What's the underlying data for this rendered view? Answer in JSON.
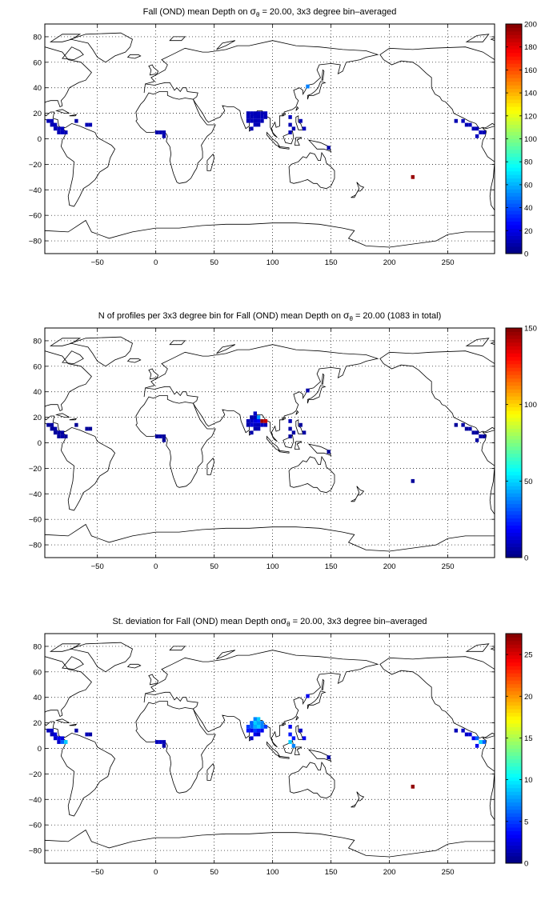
{
  "colors": {
    "jet": [
      "#00008f",
      "#0000ff",
      "#0080ff",
      "#00ffff",
      "#80ff80",
      "#ffff00",
      "#ff8000",
      "#ff0000",
      "#800000"
    ],
    "land_outline": "#000000",
    "grid": "#000000"
  },
  "panels": [
    {
      "title_pre": "Fall (OND) mean Depth on ",
      "title_sigma": "σ",
      "title_sub": "θ",
      "title_post": " = 20.00, 3x3 degree bin–averaged",
      "chart_data": {
        "type": "heatmap",
        "map_projection": "equirectangular",
        "xlim": [
          -95,
          290
        ],
        "ylim": [
          -90,
          90
        ],
        "xticks": [
          -50,
          0,
          50,
          100,
          150,
          200,
          250
        ],
        "xtick_labels": [
          "−50",
          "0",
          "50",
          "100",
          "150",
          "200",
          "250"
        ],
        "yticks": [
          80,
          60,
          40,
          20,
          0,
          -20,
          -40,
          -60,
          -80
        ],
        "ytick_labels": [
          "80",
          "60",
          "40",
          "20",
          "0",
          "−20",
          "−40",
          "−60",
          "−80"
        ],
        "grid": true,
        "colorbar": {
          "min": 0,
          "max": 200,
          "ticks": [
            0,
            20,
            40,
            60,
            80,
            100,
            120,
            140,
            160,
            180,
            200
          ],
          "tick_labels": [
            "0",
            "20",
            "40",
            "60",
            "80",
            "100",
            "120",
            "140",
            "160",
            "180",
            "200"
          ]
        },
        "bins": [
          [
            -92,
            14,
            10
          ],
          [
            -89,
            14,
            12
          ],
          [
            -89,
            11,
            10
          ],
          [
            -86,
            11,
            12
          ],
          [
            -86,
            8,
            10
          ],
          [
            -83,
            8,
            12
          ],
          [
            -80,
            8,
            12
          ],
          [
            -83,
            5,
            10
          ],
          [
            -80,
            5,
            12
          ],
          [
            -77,
            5,
            10
          ],
          [
            -68,
            14,
            8
          ],
          [
            -59,
            11,
            10
          ],
          [
            -56,
            11,
            10
          ],
          [
            1,
            5,
            8
          ],
          [
            4,
            5,
            10
          ],
          [
            7,
            5,
            10
          ],
          [
            7,
            2,
            8
          ],
          [
            79,
            20,
            10
          ],
          [
            82,
            20,
            12
          ],
          [
            85,
            20,
            10
          ],
          [
            88,
            20,
            12
          ],
          [
            91,
            20,
            10
          ],
          [
            94,
            20,
            12
          ],
          [
            79,
            17,
            12
          ],
          [
            82,
            17,
            10
          ],
          [
            85,
            17,
            12
          ],
          [
            88,
            17,
            10
          ],
          [
            91,
            17,
            12
          ],
          [
            94,
            17,
            10
          ],
          [
            79,
            14,
            10
          ],
          [
            82,
            14,
            12
          ],
          [
            85,
            14,
            10
          ],
          [
            88,
            14,
            12
          ],
          [
            91,
            14,
            10
          ],
          [
            85,
            11,
            12
          ],
          [
            88,
            11,
            10
          ],
          [
            82,
            8,
            10
          ],
          [
            115,
            17,
            12
          ],
          [
            115,
            11,
            10
          ],
          [
            118,
            8,
            10
          ],
          [
            115,
            5,
            10
          ],
          [
            130,
            41,
            50
          ],
          [
            124,
            14,
            10
          ],
          [
            127,
            8,
            12
          ],
          [
            148,
            -7,
            8
          ],
          [
            257,
            14,
            10
          ],
          [
            263,
            14,
            12
          ],
          [
            266,
            11,
            10
          ],
          [
            269,
            11,
            12
          ],
          [
            272,
            8,
            10
          ],
          [
            275,
            8,
            10
          ],
          [
            278,
            5,
            12
          ],
          [
            281,
            5,
            10
          ],
          [
            275,
            2,
            12
          ],
          [
            220,
            -30,
            195
          ]
        ]
      }
    },
    {
      "title": "N of profiles per 3x3 degree bin for Fall (OND) mean Depth on ",
      "title_sigma": "σ",
      "title_sub": "θ",
      "title_post": " = 20.00 (1083 in total)",
      "chart_data": {
        "type": "heatmap",
        "map_projection": "equirectangular",
        "xlim": [
          -95,
          290
        ],
        "ylim": [
          -90,
          90
        ],
        "xticks": [
          -50,
          0,
          50,
          100,
          150,
          200,
          250
        ],
        "xtick_labels": [
          "−50",
          "0",
          "50",
          "100",
          "150",
          "200",
          "250"
        ],
        "yticks": [
          80,
          60,
          40,
          20,
          0,
          -20,
          -40,
          -60,
          -80
        ],
        "ytick_labels": [
          "80",
          "60",
          "40",
          "20",
          "0",
          "−20",
          "−40",
          "−60",
          "−80"
        ],
        "grid": true,
        "colorbar": {
          "min": 0,
          "max": 150,
          "ticks": [
            0,
            50,
            100,
            150
          ],
          "tick_labels": [
            "0",
            "50",
            "100",
            "150"
          ]
        },
        "bins": [
          [
            -92,
            14,
            4
          ],
          [
            -89,
            14,
            5
          ],
          [
            -89,
            11,
            4
          ],
          [
            -86,
            11,
            6
          ],
          [
            -86,
            8,
            4
          ],
          [
            -83,
            8,
            6
          ],
          [
            -80,
            8,
            5
          ],
          [
            -83,
            5,
            4
          ],
          [
            -80,
            5,
            6
          ],
          [
            -77,
            5,
            4
          ],
          [
            -68,
            14,
            3
          ],
          [
            -59,
            11,
            4
          ],
          [
            -56,
            11,
            3
          ],
          [
            1,
            5,
            4
          ],
          [
            4,
            5,
            6
          ],
          [
            7,
            5,
            4
          ],
          [
            7,
            2,
            3
          ],
          [
            82,
            20,
            6
          ],
          [
            85,
            20,
            8
          ],
          [
            88,
            20,
            40
          ],
          [
            85,
            23,
            10
          ],
          [
            79,
            17,
            8
          ],
          [
            82,
            17,
            10
          ],
          [
            85,
            17,
            14
          ],
          [
            88,
            17,
            18
          ],
          [
            91,
            17,
            146
          ],
          [
            94,
            17,
            140
          ],
          [
            79,
            14,
            6
          ],
          [
            82,
            14,
            12
          ],
          [
            85,
            14,
            10
          ],
          [
            88,
            14,
            8
          ],
          [
            91,
            14,
            10
          ],
          [
            94,
            14,
            8
          ],
          [
            85,
            11,
            6
          ],
          [
            88,
            11,
            8
          ],
          [
            82,
            8,
            6
          ],
          [
            115,
            17,
            8
          ],
          [
            115,
            11,
            6
          ],
          [
            118,
            8,
            5
          ],
          [
            115,
            5,
            4
          ],
          [
            130,
            41,
            6
          ],
          [
            124,
            14,
            4
          ],
          [
            127,
            8,
            5
          ],
          [
            148,
            -7,
            3
          ],
          [
            257,
            14,
            4
          ],
          [
            263,
            14,
            5
          ],
          [
            266,
            11,
            4
          ],
          [
            269,
            11,
            6
          ],
          [
            272,
            8,
            5
          ],
          [
            275,
            8,
            4
          ],
          [
            278,
            5,
            6
          ],
          [
            281,
            5,
            4
          ],
          [
            275,
            2,
            5
          ],
          [
            220,
            -30,
            4
          ]
        ]
      }
    },
    {
      "title": "St. deviation for Fall (OND) mean Depth on",
      "title_sigma": "σ",
      "title_sub": "θ",
      "title_post": " = 20.00, 3x3 degree bin–averaged",
      "chart_data": {
        "type": "heatmap",
        "map_projection": "equirectangular",
        "xlim": [
          -95,
          290
        ],
        "ylim": [
          -90,
          90
        ],
        "xticks": [
          -50,
          0,
          50,
          100,
          150,
          200,
          250
        ],
        "xtick_labels": [
          "−50",
          "0",
          "50",
          "100",
          "150",
          "200",
          "250"
        ],
        "yticks": [
          80,
          60,
          40,
          20,
          0,
          -20,
          -40,
          -60,
          -80
        ],
        "ytick_labels": [
          "80",
          "60",
          "40",
          "20",
          "0",
          "−20",
          "−40",
          "−60",
          "−80"
        ],
        "grid": true,
        "colorbar": {
          "min": 0,
          "max": 27.5,
          "ticks": [
            0,
            5,
            10,
            15,
            20,
            25
          ],
          "tick_labels": [
            "0",
            "5",
            "10",
            "15",
            "20",
            "25"
          ]
        },
        "bins": [
          [
            -92,
            14,
            1.5
          ],
          [
            -89,
            14,
            2
          ],
          [
            -89,
            11,
            1.5
          ],
          [
            -86,
            11,
            2.5
          ],
          [
            -86,
            8,
            2
          ],
          [
            -83,
            8,
            3
          ],
          [
            -80,
            8,
            2.5
          ],
          [
            -83,
            5,
            2
          ],
          [
            -80,
            5,
            6
          ],
          [
            -77,
            5,
            9
          ],
          [
            -68,
            14,
            1
          ],
          [
            -59,
            11,
            1.5
          ],
          [
            -56,
            11,
            1
          ],
          [
            1,
            5,
            1.5
          ],
          [
            4,
            5,
            2
          ],
          [
            7,
            5,
            1.5
          ],
          [
            7,
            2,
            1
          ],
          [
            85,
            23,
            7
          ],
          [
            88,
            23,
            9
          ],
          [
            82,
            20,
            6
          ],
          [
            85,
            20,
            9
          ],
          [
            88,
            20,
            8
          ],
          [
            91,
            20,
            7
          ],
          [
            79,
            17,
            5
          ],
          [
            82,
            17,
            6
          ],
          [
            85,
            17,
            8
          ],
          [
            88,
            17,
            9
          ],
          [
            91,
            17,
            7
          ],
          [
            94,
            17,
            5
          ],
          [
            79,
            14,
            4
          ],
          [
            82,
            14,
            3
          ],
          [
            85,
            14,
            5
          ],
          [
            88,
            14,
            4
          ],
          [
            91,
            14,
            3
          ],
          [
            85,
            11,
            3
          ],
          [
            88,
            11,
            2
          ],
          [
            82,
            8,
            2
          ],
          [
            115,
            17,
            3
          ],
          [
            115,
            11,
            4
          ],
          [
            118,
            8,
            4
          ],
          [
            115,
            5,
            9
          ],
          [
            118,
            2,
            7
          ],
          [
            130,
            41,
            3
          ],
          [
            124,
            14,
            2
          ],
          [
            127,
            8,
            3
          ],
          [
            148,
            -7,
            1
          ],
          [
            257,
            14,
            1.5
          ],
          [
            263,
            14,
            2
          ],
          [
            266,
            11,
            2
          ],
          [
            269,
            11,
            2.5
          ],
          [
            272,
            8,
            3
          ],
          [
            275,
            8,
            6
          ],
          [
            278,
            5,
            9
          ],
          [
            281,
            5,
            6
          ],
          [
            275,
            2,
            3
          ],
          [
            220,
            -30,
            27
          ]
        ]
      }
    }
  ]
}
